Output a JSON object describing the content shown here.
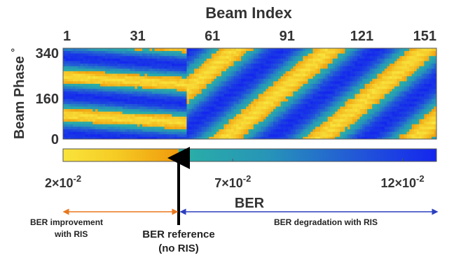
{
  "chart_data": {
    "type": "heatmap",
    "title": "",
    "xlabel": "Beam Index",
    "ylabel": "Beam Phase (°)",
    "ylabel_text": "Beam Phase",
    "ylabel_unit": "°",
    "x_tick_labels": [
      "1",
      "31",
      "61",
      "91",
      "121",
      "151"
    ],
    "x_ticks": [
      1,
      31,
      61,
      91,
      121,
      151
    ],
    "xlim": [
      1,
      151
    ],
    "y_tick_labels": [
      "340",
      "160",
      "0"
    ],
    "y_ticks": [
      340,
      160,
      0
    ],
    "ylim": [
      0,
      360
    ],
    "x_axis_position": "top",
    "colorbar": {
      "label": "BER",
      "range": [
        0.02,
        0.13
      ],
      "reference_value": 0.05,
      "tick_labels": [
        {
          "mantissa": "2",
          "exponent": "-2",
          "value": 0.02
        },
        {
          "mantissa": "7",
          "exponent": "-2",
          "value": 0.07
        },
        {
          "mantissa": "12",
          "exponent": "-2",
          "value": 0.12
        }
      ],
      "colors": {
        "low": "#f5dc2a",
        "mid": "#f2a60c",
        "ref": "#2fa8a8",
        "high": "#1530e8"
      }
    },
    "pattern_description_free": true,
    "band_pattern": {
      "note": "bands of BER value drifting diagonally across beam index vs phase",
      "low_ber_value": 0.03,
      "high_ber_value": 0.11
    },
    "annotations": {
      "improvement": {
        "line1": "BER improvement",
        "line2": "with RIS"
      },
      "reference": {
        "line1": "BER reference",
        "line2": "(no RIS)"
      },
      "degradation": "BER degradation with RIS"
    },
    "annotation_colors": {
      "improvement": "#e8771d",
      "degradation": "#2c3fbf",
      "reference": "#000000"
    }
  }
}
